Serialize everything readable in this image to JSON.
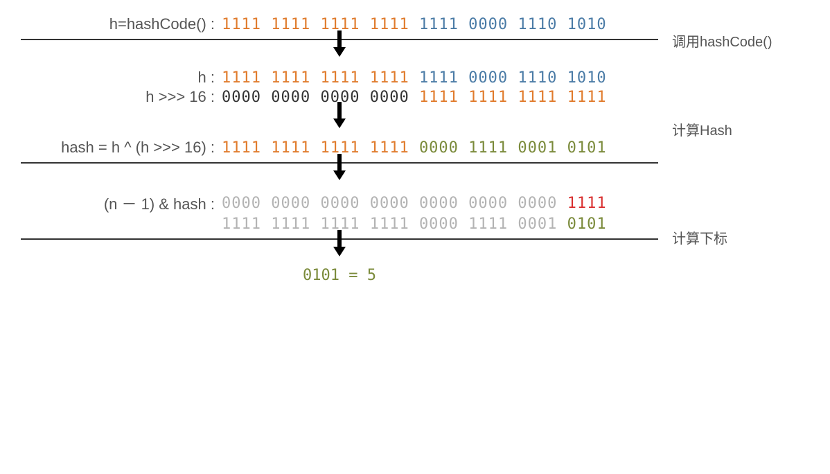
{
  "colors": {
    "orange": "#e07b2c",
    "blue": "#4a7ba6",
    "black": "#333333",
    "olive": "#7a8a3a",
    "gray": "#b3b3b3",
    "red": "#d93030",
    "textGray": "#555555"
  },
  "fontsize_bits": 22,
  "fontsize_label": 22,
  "fontsize_comment": 20,
  "rows": {
    "r1": {
      "label": "h=hashCode() :",
      "comment": "调用hashCode()",
      "groups": [
        {
          "t": "1111",
          "c": "orange"
        },
        {
          "t": "1111",
          "c": "orange"
        },
        {
          "t": "1111",
          "c": "orange"
        },
        {
          "t": "1111",
          "c": "orange"
        },
        {
          "t": "1111",
          "c": "blue"
        },
        {
          "t": "0000",
          "c": "blue"
        },
        {
          "t": "1110",
          "c": "blue"
        },
        {
          "t": "1010",
          "c": "blue"
        }
      ]
    },
    "r2a": {
      "label": "h :",
      "groups": [
        {
          "t": "1111",
          "c": "orange"
        },
        {
          "t": "1111",
          "c": "orange"
        },
        {
          "t": "1111",
          "c": "orange"
        },
        {
          "t": "1111",
          "c": "orange"
        },
        {
          "t": "1111",
          "c": "blue"
        },
        {
          "t": "0000",
          "c": "blue"
        },
        {
          "t": "1110",
          "c": "blue"
        },
        {
          "t": "1010",
          "c": "blue"
        }
      ]
    },
    "r2b": {
      "label": "h >>> 16 :",
      "comment": "计算Hash",
      "groups": [
        {
          "t": "0000",
          "c": "black"
        },
        {
          "t": "0000",
          "c": "black"
        },
        {
          "t": "0000",
          "c": "black"
        },
        {
          "t": "0000",
          "c": "black"
        },
        {
          "t": "1111",
          "c": "orange"
        },
        {
          "t": "1111",
          "c": "orange"
        },
        {
          "t": "1111",
          "c": "orange"
        },
        {
          "t": "1111",
          "c": "orange"
        }
      ]
    },
    "r3": {
      "label": "hash = h ^ (h >>> 16) :",
      "groups": [
        {
          "t": "1111",
          "c": "orange"
        },
        {
          "t": "1111",
          "c": "orange"
        },
        {
          "t": "1111",
          "c": "orange"
        },
        {
          "t": "1111",
          "c": "orange"
        },
        {
          "t": "0000",
          "c": "olive"
        },
        {
          "t": "1111",
          "c": "olive"
        },
        {
          "t": "0001",
          "c": "olive"
        },
        {
          "t": "0101",
          "c": "olive"
        }
      ]
    },
    "r4a": {
      "label": "(n － 1) & hash :",
      "comment": "计算下标",
      "groups": [
        {
          "t": "0000",
          "c": "gray"
        },
        {
          "t": "0000",
          "c": "gray"
        },
        {
          "t": "0000",
          "c": "gray"
        },
        {
          "t": "0000",
          "c": "gray"
        },
        {
          "t": "0000",
          "c": "gray"
        },
        {
          "t": "0000",
          "c": "gray"
        },
        {
          "t": "0000",
          "c": "gray"
        },
        {
          "t": "1111",
          "c": "red"
        }
      ]
    },
    "r4b": {
      "label": "",
      "groups": [
        {
          "t": "1111",
          "c": "gray"
        },
        {
          "t": "1111",
          "c": "gray"
        },
        {
          "t": "1111",
          "c": "gray"
        },
        {
          "t": "1111",
          "c": "gray"
        },
        {
          "t": "0000",
          "c": "gray"
        },
        {
          "t": "1111",
          "c": "gray"
        },
        {
          "t": "0001",
          "c": "gray"
        },
        {
          "t": "0101",
          "c": "olive"
        }
      ]
    },
    "result": {
      "text": "0101 = 5",
      "color": "olive"
    }
  }
}
